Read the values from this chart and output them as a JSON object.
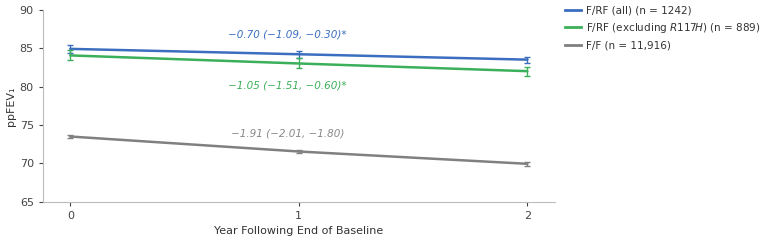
{
  "xlabel": "Year Following End of Baseline",
  "ylabel": "ppFEV₁",
  "ylim": [
    65,
    90
  ],
  "yticks": [
    65,
    70,
    75,
    80,
    85,
    90
  ],
  "xticks": [
    0,
    1,
    2
  ],
  "series": [
    {
      "label": "F/RF (all) (n = 1242)",
      "color": "#3B6EBF",
      "x": [
        0,
        1,
        2
      ],
      "y": [
        84.9,
        84.2,
        83.5
      ],
      "yerr_low": [
        84.4,
        83.75,
        83.1
      ],
      "yerr_high": [
        85.4,
        84.65,
        83.9
      ],
      "annotation": "−0.70 (−1.09, −0.30)*",
      "ann_x": 0.95,
      "ann_y": 86.8,
      "ann_color": "#3B6EBF"
    },
    {
      "label": "F/RF (excluding $\\mathit{R117H}$) (n = 889)",
      "color": "#3BAF5A",
      "x": [
        0,
        1,
        2
      ],
      "y": [
        84.05,
        83.0,
        82.0
      ],
      "yerr_low": [
        83.4,
        82.35,
        81.4
      ],
      "yerr_high": [
        84.7,
        83.65,
        82.6
      ],
      "annotation": "−1.05 (−1.51, −0.60)*",
      "ann_x": 0.95,
      "ann_y": 80.2,
      "ann_color": "#3BAF5A"
    },
    {
      "label": "F/F (n = 11,916)",
      "color": "#808080",
      "x": [
        0,
        1,
        2
      ],
      "y": [
        73.5,
        71.55,
        69.95
      ],
      "yerr_low": [
        73.3,
        71.3,
        69.7
      ],
      "yerr_high": [
        73.7,
        71.8,
        70.2
      ],
      "annotation": "−1.91 (−2.01, −1.80)",
      "ann_x": 0.95,
      "ann_y": 73.9,
      "ann_color": "#888888"
    }
  ],
  "legend_colors": [
    "#3B6EBF",
    "#3BAF5A",
    "#808080"
  ],
  "background_color": "#ffffff",
  "figsize": [
    7.67,
    2.42
  ],
  "dpi": 100,
  "spine_color": "#bbbbbb",
  "tick_color": "#444444",
  "label_fontsize": 8,
  "annotation_fontsize": 7.5,
  "legend_fontsize": 7.5,
  "line_width": 1.8,
  "capsize": 2.5,
  "errorbar_lw": 1.0
}
